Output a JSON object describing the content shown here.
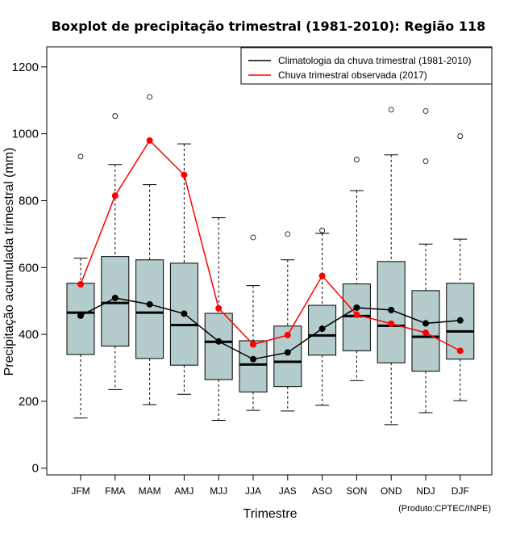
{
  "chart_data": {
    "type": "boxplot",
    "title": "Boxplot de precipitação trimestral (1981-2010): Região 118",
    "xlabel": "Trimestre",
    "ylabel": "Precipitação acumulada trimestral (mm)",
    "credit": "(Produto:CPTEC/INPE)",
    "ylim": [
      -20,
      1260
    ],
    "yticks": [
      0,
      200,
      400,
      600,
      800,
      1000,
      1200
    ],
    "categories": [
      "JFM",
      "FMA",
      "MAM",
      "AMJ",
      "MJJ",
      "JJA",
      "JAS",
      "ASO",
      "SON",
      "OND",
      "NDJ",
      "DJF"
    ],
    "boxes": [
      {
        "min": 150,
        "q1": 340,
        "median": 465,
        "q3": 553,
        "max": 628,
        "outliers": [
          932
        ]
      },
      {
        "min": 235,
        "q1": 365,
        "median": 494,
        "q3": 633,
        "max": 908,
        "outliers": [
          1053
        ]
      },
      {
        "min": 190,
        "q1": 328,
        "median": 465,
        "q3": 623,
        "max": 848,
        "outliers": [
          1110
        ]
      },
      {
        "min": 221,
        "q1": 308,
        "median": 428,
        "q3": 613,
        "max": 970,
        "outliers": []
      },
      {
        "min": 143,
        "q1": 265,
        "median": 378,
        "q3": 463,
        "max": 749,
        "outliers": []
      },
      {
        "min": 173,
        "q1": 228,
        "median": 310,
        "q3": 381,
        "max": 546,
        "outliers": [
          690
        ]
      },
      {
        "min": 171,
        "q1": 244,
        "median": 318,
        "q3": 425,
        "max": 623,
        "outliers": [
          700
        ]
      },
      {
        "min": 188,
        "q1": 338,
        "median": 397,
        "q3": 487,
        "max": 702,
        "outliers": [
          711
        ]
      },
      {
        "min": 262,
        "q1": 351,
        "median": 455,
        "q3": 551,
        "max": 830,
        "outliers": [
          923
        ]
      },
      {
        "min": 130,
        "q1": 315,
        "median": 426,
        "q3": 618,
        "max": 937,
        "outliers": [
          1072
        ]
      },
      {
        "min": 166,
        "q1": 290,
        "median": 393,
        "q3": 531,
        "max": 670,
        "outliers": [
          918,
          1068
        ]
      },
      {
        "min": 202,
        "q1": 326,
        "median": 409,
        "q3": 553,
        "max": 685,
        "outliers": [
          993
        ]
      }
    ],
    "series": [
      {
        "name": "Climatologia da chuva trimestral (1981-2010)",
        "color": "#000000",
        "values": [
          456,
          509,
          490,
          462,
          379,
          326,
          346,
          417,
          480,
          473,
          433,
          442
        ]
      },
      {
        "name": "Chuva trimestral observada (2017)",
        "color": "#ff0000",
        "values": [
          550,
          815,
          980,
          877,
          478,
          370,
          398,
          575,
          459,
          432,
          405,
          351
        ]
      }
    ],
    "legend_position": "top-right",
    "box_fill": "#b4cccc"
  }
}
